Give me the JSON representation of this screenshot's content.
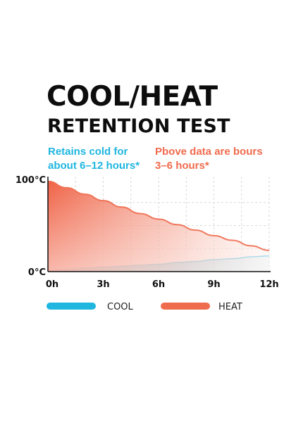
{
  "title": {
    "line1": "COOL/HEAT",
    "line2": "RETENTION TEST"
  },
  "notes": {
    "cool_line1": "Retains cold for",
    "cool_line2": "about 6–12 hours*",
    "heat_line1": "Pbove data are bours",
    "heat_line2": "3–6 hours*"
  },
  "colors": {
    "cool": "#1fb6df",
    "heat": "#ef6b4e",
    "grid": "#d9d9d9",
    "axis": "#111111"
  },
  "chart_data": {
    "type": "area",
    "x": [
      0,
      1,
      2,
      3,
      4,
      5,
      6,
      7,
      8,
      9,
      10,
      11,
      12
    ],
    "x_ticks": [
      0,
      3,
      6,
      9,
      12
    ],
    "x_tick_labels": [
      "0h",
      "3h",
      "6h",
      "9h",
      "12h"
    ],
    "y_ticks": [
      0,
      100
    ],
    "y_tick_labels": [
      "0°C",
      "100°C"
    ],
    "xlim": [
      0,
      12
    ],
    "ylim": [
      0,
      100
    ],
    "grid": true,
    "legend_position": "bottom",
    "series": [
      {
        "name": "COOL",
        "color_key": "cool",
        "values": [
          2,
          3,
          4,
          5,
          6,
          7,
          8,
          10,
          11,
          13,
          14,
          16,
          17
        ]
      },
      {
        "name": "HEAT",
        "color_key": "heat",
        "values": [
          98,
          91,
          84,
          77,
          70,
          63,
          57,
          51,
          45,
          39,
          34,
          28,
          23
        ]
      }
    ]
  }
}
